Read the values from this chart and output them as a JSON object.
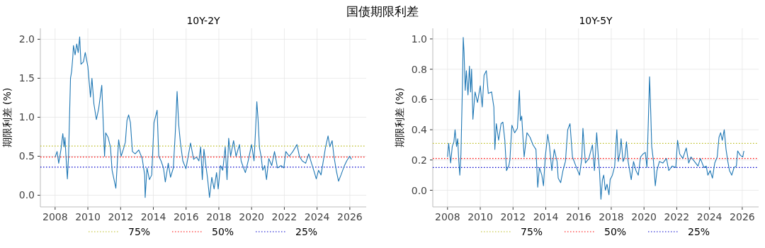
{
  "chart_data": [
    {
      "type": "line",
      "title": "国债期限利差",
      "subtitle": "10Y-2Y",
      "ylabel": "期限利差 (%)",
      "grid": true,
      "legend": "bottom",
      "xlim": [
        2007.1,
        2027.0
      ],
      "ylim": [
        -0.15,
        2.14
      ],
      "xticks": [
        2008,
        2010,
        2012,
        2014,
        2016,
        2018,
        2020,
        2022,
        2024,
        2026
      ],
      "yticks": [
        {
          "value": 0,
          "label": "0.0"
        },
        {
          "value": 0.5,
          "label": "0.5"
        },
        {
          "value": 1,
          "label": "1.0"
        },
        {
          "value": 1.5,
          "label": "1.5"
        },
        {
          "value": 2,
          "label": "2.0"
        }
      ],
      "series": [
        {
          "color": "#1f77b4",
          "x": [
            2008.0,
            2008.12,
            2008.22,
            2008.36,
            2008.47,
            2008.55,
            2008.6,
            2008.68,
            2008.75,
            2008.82,
            2008.94,
            2009.01,
            2009.08,
            2009.12,
            2009.22,
            2009.32,
            2009.41,
            2009.5,
            2009.58,
            2009.73,
            2009.84,
            2010.0,
            2010.16,
            2010.25,
            2010.37,
            2010.52,
            2010.66,
            2010.85,
            2010.95,
            2011.02,
            2011.09,
            2011.24,
            2011.38,
            2011.48,
            2011.71,
            2011.88,
            2012.03,
            2012.17,
            2012.29,
            2012.39,
            2012.49,
            2012.6,
            2012.72,
            2012.89,
            2013.11,
            2013.32,
            2013.47,
            2013.5,
            2013.61,
            2013.76,
            2013.9,
            2014.04,
            2014.23,
            2014.33,
            2014.47,
            2014.62,
            2014.73,
            2014.91,
            2015.05,
            2015.22,
            2015.34,
            2015.45,
            2015.55,
            2015.65,
            2015.8,
            2015.99,
            2016.13,
            2016.27,
            2016.46,
            2016.63,
            2016.78,
            2016.89,
            2016.99,
            2017.09,
            2017.21,
            2017.32,
            2017.43,
            2017.57,
            2017.71,
            2017.86,
            2017.96,
            2018.1,
            2018.24,
            2018.39,
            2018.5,
            2018.6,
            2018.72,
            2018.9,
            2019.05,
            2019.26,
            2019.36,
            2019.51,
            2019.62,
            2019.79,
            2020.0,
            2020.15,
            2020.25,
            2020.32,
            2020.39,
            2020.48,
            2020.58,
            2020.68,
            2020.8,
            2020.91,
            2021.05,
            2021.23,
            2021.4,
            2021.58,
            2021.8,
            2021.97,
            2022.09,
            2022.3,
            2022.52,
            2022.77,
            2022.92,
            2023.09,
            2023.3,
            2023.49,
            2023.66,
            2023.84,
            2023.95,
            2024.09,
            2024.24,
            2024.38,
            2024.52,
            2024.67,
            2024.78,
            2024.92,
            2025.03,
            2025.17,
            2025.31,
            2025.46,
            2025.67,
            2025.81,
            2025.99,
            2026.1
          ],
          "values": [
            0.49,
            0.56,
            0.41,
            0.59,
            0.79,
            0.62,
            0.74,
            0.44,
            0.21,
            0.5,
            1.5,
            1.59,
            1.77,
            1.92,
            1.8,
            1.94,
            1.83,
            2.03,
            1.68,
            1.71,
            1.83,
            1.65,
            1.26,
            1.5,
            1.17,
            0.97,
            1.11,
            1.41,
            0.87,
            0.5,
            0.8,
            0.74,
            0.62,
            0.32,
            0.09,
            0.71,
            0.5,
            0.59,
            0.68,
            0.96,
            1.03,
            0.93,
            0.56,
            0.53,
            0.58,
            0.47,
            0.26,
            -0.03,
            0.35,
            0.2,
            0.26,
            0.93,
            1.09,
            0.5,
            0.44,
            0.35,
            0.17,
            0.41,
            0.23,
            0.35,
            0.8,
            1.33,
            0.9,
            0.68,
            0.44,
            0.34,
            0.5,
            0.67,
            0.46,
            0.49,
            0.44,
            0.62,
            0.2,
            0.59,
            0.38,
            0.2,
            -0.03,
            0.23,
            0.08,
            0.29,
            0.08,
            0.38,
            0.32,
            0.62,
            0.2,
            0.73,
            0.5,
            0.7,
            0.5,
            0.65,
            0.44,
            0.35,
            0.29,
            0.44,
            0.65,
            0.44,
            0.87,
            1.2,
            0.99,
            0.61,
            0.5,
            0.32,
            0.38,
            0.2,
            0.47,
            0.38,
            0.56,
            0.35,
            0.38,
            0.35,
            0.56,
            0.5,
            0.56,
            0.65,
            0.5,
            0.44,
            0.41,
            0.53,
            0.41,
            0.29,
            0.21,
            0.32,
            0.26,
            0.44,
            0.62,
            0.76,
            0.62,
            0.7,
            0.5,
            0.32,
            0.18,
            0.26,
            0.38,
            0.44,
            0.5,
            0.46
          ]
        },
        {
          "name": "75%",
          "color": "#bcbd22",
          "line_style": "dotted",
          "x": [
            2007.1,
            2027.0
          ],
          "values": [
            0.63,
            0.63
          ]
        },
        {
          "name": "50%",
          "color": "#ff0000",
          "line_style": "dotted",
          "x": [
            2007.1,
            2027.0
          ],
          "values": [
            0.49,
            0.49
          ]
        },
        {
          "name": "25%",
          "color": "#0000cd",
          "line_style": "dotted",
          "x": [
            2007.1,
            2027.0
          ],
          "values": [
            0.36,
            0.36
          ]
        }
      ]
    },
    {
      "type": "line",
      "subtitle": "10Y-5Y",
      "ylabel": "期限利差 (%)",
      "grid": true,
      "legend": "bottom",
      "xlim": [
        2007.1,
        2027.0
      ],
      "ylim": [
        -0.11,
        1.07
      ],
      "xticks": [
        2008,
        2010,
        2012,
        2014,
        2016,
        2018,
        2020,
        2022,
        2024,
        2026
      ],
      "yticks": [
        {
          "value": 0,
          "label": "0.0"
        },
        {
          "value": 0.2,
          "label": "0.2"
        },
        {
          "value": 0.4,
          "label": "0.4"
        },
        {
          "value": 0.6,
          "label": "0.6"
        },
        {
          "value": 0.8,
          "label": "0.8"
        },
        {
          "value": 1,
          "label": "1.0"
        }
      ],
      "series": [
        {
          "color": "#1f77b4",
          "x": [
            2008.0,
            2008.07,
            2008.19,
            2008.29,
            2008.39,
            2008.46,
            2008.55,
            2008.62,
            2008.69,
            2008.75,
            2008.82,
            2008.91,
            2008.96,
            2009.01,
            2009.08,
            2009.15,
            2009.25,
            2009.34,
            2009.41,
            2009.47,
            2009.55,
            2009.68,
            2009.83,
            2010.0,
            2010.12,
            2010.23,
            2010.37,
            2010.49,
            2010.69,
            2010.83,
            2010.89,
            2010.98,
            2011.12,
            2011.27,
            2011.38,
            2011.5,
            2011.6,
            2011.74,
            2011.81,
            2011.93,
            2012.1,
            2012.27,
            2012.39,
            2012.45,
            2012.53,
            2012.68,
            2012.85,
            2013.04,
            2013.22,
            2013.4,
            2013.51,
            2013.61,
            2013.76,
            2013.86,
            2013.97,
            2014.12,
            2014.23,
            2014.37,
            2014.52,
            2014.69,
            2014.76,
            2014.91,
            2015.05,
            2015.2,
            2015.34,
            2015.48,
            2015.63,
            2015.84,
            2016.06,
            2016.2,
            2016.27,
            2016.42,
            2016.63,
            2016.85,
            2016.97,
            2017.11,
            2017.21,
            2017.28,
            2017.37,
            2017.46,
            2017.54,
            2017.64,
            2017.74,
            2017.86,
            2017.93,
            2018.07,
            2018.21,
            2018.34,
            2018.43,
            2018.53,
            2018.6,
            2018.72,
            2018.83,
            2018.93,
            2019.03,
            2019.22,
            2019.36,
            2019.51,
            2019.65,
            2019.79,
            2019.94,
            2020.08,
            2020.18,
            2020.26,
            2020.34,
            2020.41,
            2020.47,
            2020.58,
            2020.69,
            2020.79,
            2020.94,
            2021.15,
            2021.37,
            2021.51,
            2021.72,
            2021.94,
            2022.05,
            2022.18,
            2022.37,
            2022.58,
            2022.73,
            2022.87,
            2023.08,
            2023.3,
            2023.44,
            2023.66,
            2023.8,
            2023.9,
            2024.04,
            2024.18,
            2024.32,
            2024.47,
            2024.58,
            2024.68,
            2024.78,
            2024.9,
            2025.01,
            2025.12,
            2025.22,
            2025.36,
            2025.5,
            2025.64,
            2025.72,
            2025.89,
            2026.03,
            2026.1
          ],
          "values": [
            0.22,
            0.31,
            0.18,
            0.29,
            0.32,
            0.4,
            0.29,
            0.34,
            0.19,
            0.1,
            0.24,
            0.69,
            1.01,
            0.91,
            0.66,
            0.79,
            0.63,
            0.82,
            0.65,
            0.8,
            0.47,
            0.65,
            0.58,
            0.69,
            0.55,
            0.76,
            0.79,
            0.64,
            0.65,
            0.55,
            0.27,
            0.44,
            0.33,
            0.44,
            0.45,
            0.33,
            0.13,
            0.16,
            0.2,
            0.43,
            0.38,
            0.41,
            0.66,
            0.46,
            0.49,
            0.22,
            0.38,
            0.35,
            0.3,
            0.27,
            0.02,
            0.15,
            0.1,
            0.03,
            0.22,
            0.37,
            0.29,
            0.13,
            0.27,
            0.19,
            0.08,
            0.05,
            0.13,
            0.19,
            0.4,
            0.44,
            0.22,
            0.16,
            0.1,
            0.21,
            0.41,
            0.18,
            0.21,
            0.3,
            0.13,
            0.38,
            0.22,
            0.13,
            -0.06,
            0.07,
            0.1,
            0.0,
            0.04,
            -0.03,
            0.07,
            0.1,
            0.16,
            0.4,
            0.19,
            0.25,
            0.34,
            0.19,
            0.22,
            0.32,
            0.19,
            0.07,
            0.19,
            0.13,
            0.1,
            0.22,
            0.24,
            0.25,
            0.15,
            0.44,
            0.75,
            0.52,
            0.29,
            0.19,
            0.03,
            0.13,
            0.19,
            0.18,
            0.21,
            0.13,
            0.16,
            0.15,
            0.33,
            0.24,
            0.21,
            0.28,
            0.18,
            0.22,
            0.19,
            0.16,
            0.21,
            0.15,
            0.16,
            0.1,
            0.13,
            0.08,
            0.18,
            0.22,
            0.35,
            0.38,
            0.33,
            0.4,
            0.27,
            0.19,
            0.13,
            0.1,
            0.15,
            0.16,
            0.26,
            0.23,
            0.22,
            0.26
          ]
        },
        {
          "name": "75%",
          "color": "#bcbd22",
          "line_style": "dotted",
          "x": [
            2007.1,
            2027.0
          ],
          "values": [
            0.31,
            0.31
          ]
        },
        {
          "name": "50%",
          "color": "#ff0000",
          "line_style": "dotted",
          "x": [
            2007.1,
            2027.0
          ],
          "values": [
            0.21,
            0.21
          ]
        },
        {
          "name": "25%",
          "color": "#0000cd",
          "line_style": "dotted",
          "x": [
            2007.1,
            2027.0
          ],
          "values": [
            0.15,
            0.15
          ]
        }
      ]
    }
  ]
}
